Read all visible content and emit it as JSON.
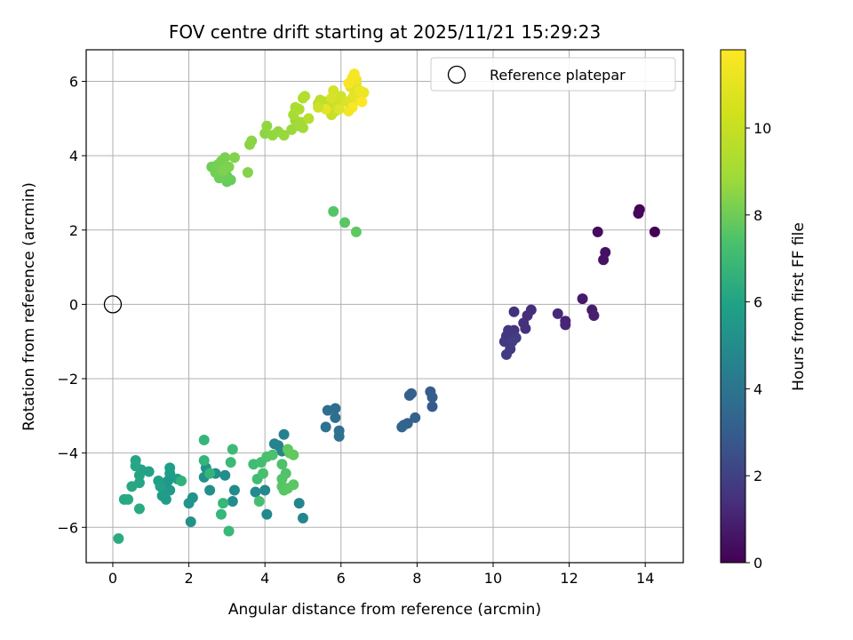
{
  "chart_data": {
    "type": "scatter",
    "title": "FOV centre drift starting at 2025/11/21 15:29:23",
    "xlabel": "Angular distance from reference (arcmin)",
    "ylabel": "Rotation from reference (arcmin)",
    "xlim": [
      -0.7,
      15.0
    ],
    "ylim": [
      -6.95,
      6.85
    ],
    "xticks": [
      0,
      2,
      4,
      6,
      8,
      10,
      12,
      14
    ],
    "yticks": [
      -6,
      -4,
      -2,
      0,
      2,
      4,
      6
    ],
    "xtick_labels": [
      "0",
      "2",
      "4",
      "6",
      "8",
      "10",
      "12",
      "14"
    ],
    "ytick_labels": [
      "−6",
      "−4",
      "−2",
      "0",
      "2",
      "4",
      "6"
    ],
    "grid": true,
    "legend": {
      "position": "top-right",
      "entries": [
        "Reference platepar"
      ]
    },
    "reference_point": {
      "x": 0,
      "y": 0,
      "label": "Reference platepar"
    },
    "colorbar": {
      "label": "Hours from first FF file",
      "colormap": "viridis",
      "min": 0,
      "max": 11.8,
      "ticks": [
        0,
        2,
        4,
        6,
        8,
        10
      ],
      "tick_labels": [
        "0",
        "2",
        "4",
        "6",
        "8",
        "10"
      ]
    },
    "series": [
      {
        "name": "FOV centre drift",
        "points": [
          [
            14.25,
            1.95,
            0.0
          ],
          [
            13.85,
            2.55,
            0.1
          ],
          [
            13.82,
            2.45,
            0.2
          ],
          [
            12.75,
            1.95,
            0.35
          ],
          [
            12.95,
            1.4,
            0.5
          ],
          [
            12.9,
            1.2,
            0.6
          ],
          [
            12.35,
            0.15,
            0.8
          ],
          [
            12.6,
            -0.15,
            0.9
          ],
          [
            12.65,
            -0.3,
            1.0
          ],
          [
            11.9,
            -0.45,
            1.15
          ],
          [
            11.9,
            -0.55,
            1.25
          ],
          [
            11.7,
            -0.25,
            1.35
          ],
          [
            11.0,
            -0.15,
            1.5
          ],
          [
            10.9,
            -0.3,
            1.55
          ],
          [
            10.8,
            -0.5,
            1.6
          ],
          [
            10.85,
            -0.65,
            1.65
          ],
          [
            10.55,
            -0.2,
            1.7
          ],
          [
            10.55,
            -0.7,
            1.75
          ],
          [
            10.5,
            -0.8,
            1.8
          ],
          [
            10.4,
            -0.7,
            1.85
          ],
          [
            10.35,
            -0.85,
            1.9
          ],
          [
            10.3,
            -1.0,
            1.95
          ],
          [
            10.45,
            -1.2,
            2.0
          ],
          [
            10.35,
            -1.35,
            2.05
          ],
          [
            10.6,
            -0.9,
            2.1
          ],
          [
            10.5,
            -1.0,
            2.15
          ],
          [
            8.4,
            -2.75,
            3.3
          ],
          [
            8.35,
            -2.35,
            3.4
          ],
          [
            8.4,
            -2.5,
            3.5
          ],
          [
            7.85,
            -2.4,
            3.55
          ],
          [
            7.8,
            -2.45,
            3.6
          ],
          [
            7.95,
            -3.05,
            3.65
          ],
          [
            7.75,
            -3.2,
            3.7
          ],
          [
            7.65,
            -3.25,
            3.75
          ],
          [
            7.6,
            -3.3,
            3.8
          ],
          [
            5.85,
            -2.8,
            4.2
          ],
          [
            5.65,
            -2.85,
            4.25
          ],
          [
            5.85,
            -3.05,
            4.3
          ],
          [
            5.95,
            -3.4,
            4.35
          ],
          [
            5.95,
            -3.55,
            4.4
          ],
          [
            5.6,
            -3.3,
            4.45
          ],
          [
            4.5,
            -3.5,
            5.2
          ],
          [
            4.25,
            -3.75,
            5.25
          ],
          [
            4.35,
            -3.8,
            5.3
          ],
          [
            4.45,
            -3.95,
            5.35
          ],
          [
            4.9,
            -5.35,
            5.4
          ],
          [
            5.0,
            -5.75,
            5.45
          ],
          [
            4.0,
            -5.0,
            5.5
          ],
          [
            4.05,
            -5.65,
            5.55
          ],
          [
            3.75,
            -5.05,
            5.6
          ],
          [
            3.2,
            -5.0,
            5.65
          ],
          [
            3.15,
            -5.3,
            5.7
          ],
          [
            2.95,
            -4.6,
            5.75
          ],
          [
            2.7,
            -4.55,
            5.8
          ],
          [
            2.55,
            -5.0,
            5.85
          ],
          [
            2.4,
            -4.65,
            5.9
          ],
          [
            2.45,
            -4.4,
            5.95
          ],
          [
            2.05,
            -5.85,
            6.0
          ],
          [
            2.1,
            -5.2,
            6.05
          ],
          [
            2.0,
            -5.35,
            6.1
          ],
          [
            1.45,
            -4.75,
            6.2
          ],
          [
            1.35,
            -4.95,
            6.3
          ],
          [
            1.5,
            -5.0,
            6.35
          ],
          [
            1.3,
            -5.15,
            6.4
          ],
          [
            1.4,
            -5.25,
            6.45
          ],
          [
            1.5,
            -4.55,
            6.5
          ],
          [
            1.5,
            -4.4,
            6.55
          ],
          [
            1.7,
            -4.7,
            6.6
          ],
          [
            1.2,
            -4.75,
            6.65
          ],
          [
            1.25,
            -4.9,
            6.7
          ],
          [
            0.95,
            -4.5,
            6.75
          ],
          [
            0.75,
            -4.45,
            6.8
          ],
          [
            0.7,
            -4.6,
            6.85
          ],
          [
            0.6,
            -4.2,
            6.9
          ],
          [
            0.6,
            -4.35,
            6.95
          ],
          [
            0.7,
            -4.8,
            7.0
          ],
          [
            0.5,
            -4.9,
            7.05
          ],
          [
            0.3,
            -5.25,
            7.1
          ],
          [
            0.4,
            -5.25,
            7.15
          ],
          [
            0.7,
            -5.5,
            7.2
          ],
          [
            0.15,
            -6.3,
            7.3
          ],
          [
            1.8,
            -4.75,
            7.6
          ],
          [
            2.4,
            -4.2,
            7.7
          ],
          [
            2.55,
            -4.55,
            7.75
          ],
          [
            2.4,
            -3.65,
            7.8
          ],
          [
            2.85,
            -5.65,
            7.85
          ],
          [
            2.9,
            -5.35,
            7.9
          ],
          [
            3.05,
            -6.1,
            7.95
          ],
          [
            3.1,
            -4.25,
            8.0
          ],
          [
            3.15,
            -3.9,
            8.05
          ],
          [
            3.7,
            -4.3,
            8.1
          ],
          [
            3.8,
            -4.7,
            8.15
          ],
          [
            3.9,
            -4.25,
            8.2
          ],
          [
            3.85,
            -5.3,
            8.25
          ],
          [
            3.95,
            -4.55,
            8.3
          ],
          [
            4.05,
            -4.1,
            8.35
          ],
          [
            4.2,
            -4.05,
            8.4
          ],
          [
            4.45,
            -4.3,
            8.45
          ],
          [
            4.55,
            -4.55,
            8.5
          ],
          [
            4.45,
            -4.7,
            8.55
          ],
          [
            4.45,
            -4.9,
            8.6
          ],
          [
            4.5,
            -5.0,
            8.65
          ],
          [
            4.6,
            -4.95,
            8.7
          ],
          [
            4.75,
            -4.85,
            8.75
          ],
          [
            4.6,
            -3.9,
            8.8
          ],
          [
            4.75,
            -4.05,
            8.85
          ],
          [
            4.65,
            -4.0,
            8.9
          ],
          [
            5.8,
            2.5,
            8.6
          ],
          [
            6.1,
            2.2,
            8.7
          ],
          [
            6.4,
            1.95,
            8.8
          ],
          [
            3.0,
            3.3,
            9.0
          ],
          [
            3.1,
            3.35,
            9.05
          ],
          [
            3.0,
            3.45,
            9.1
          ],
          [
            2.8,
            3.4,
            9.15
          ],
          [
            2.6,
            3.7,
            9.2
          ],
          [
            2.7,
            3.55,
            9.25
          ],
          [
            2.75,
            3.75,
            9.3
          ],
          [
            2.85,
            3.85,
            9.35
          ],
          [
            2.95,
            3.95,
            9.4
          ],
          [
            3.05,
            3.7,
            9.45
          ],
          [
            2.9,
            3.6,
            9.5
          ],
          [
            3.2,
            3.95,
            9.55
          ],
          [
            3.55,
            3.55,
            9.6
          ],
          [
            3.6,
            4.3,
            9.65
          ],
          [
            3.65,
            4.4,
            9.7
          ],
          [
            4.0,
            4.6,
            9.75
          ],
          [
            4.05,
            4.8,
            9.8
          ],
          [
            4.2,
            4.55,
            9.85
          ],
          [
            4.35,
            4.65,
            9.9
          ],
          [
            4.5,
            4.55,
            9.95
          ],
          [
            4.7,
            4.7,
            10.0
          ],
          [
            4.8,
            4.95,
            10.05
          ],
          [
            4.9,
            4.8,
            10.1
          ],
          [
            5.0,
            4.75,
            10.15
          ],
          [
            4.95,
            4.9,
            10.2
          ],
          [
            4.75,
            5.1,
            10.25
          ],
          [
            4.8,
            5.3,
            10.3
          ],
          [
            4.9,
            5.25,
            10.35
          ],
          [
            5.0,
            5.55,
            10.4
          ],
          [
            5.05,
            5.6,
            10.45
          ],
          [
            5.15,
            5.0,
            10.5
          ],
          [
            5.4,
            5.4,
            10.55
          ],
          [
            5.45,
            5.5,
            10.6
          ],
          [
            5.6,
            5.45,
            10.65
          ],
          [
            5.7,
            5.3,
            10.7
          ],
          [
            5.8,
            5.45,
            10.75
          ],
          [
            5.75,
            5.1,
            10.8
          ],
          [
            5.85,
            5.2,
            10.85
          ],
          [
            5.9,
            5.35,
            10.9
          ],
          [
            5.95,
            5.55,
            10.95
          ],
          [
            6.0,
            5.6,
            11.0
          ],
          [
            5.8,
            5.75,
            11.05
          ],
          [
            5.75,
            5.55,
            11.1
          ],
          [
            6.15,
            5.45,
            11.15
          ],
          [
            6.3,
            5.55,
            11.2
          ],
          [
            6.25,
            5.85,
            11.25
          ],
          [
            6.4,
            5.95,
            11.3
          ],
          [
            6.35,
            5.65,
            11.35
          ],
          [
            6.45,
            5.5,
            11.4
          ],
          [
            6.6,
            5.7,
            11.45
          ],
          [
            6.5,
            5.75,
            11.5
          ],
          [
            6.4,
            6.05,
            11.55
          ],
          [
            6.3,
            6.1,
            11.6
          ],
          [
            6.35,
            6.2,
            11.65
          ],
          [
            6.2,
            5.95,
            11.7
          ],
          [
            6.3,
            5.3,
            11.75
          ],
          [
            6.55,
            5.45,
            11.8
          ],
          [
            6.2,
            5.2,
            11.6
          ],
          [
            5.6,
            5.25,
            11.4
          ],
          [
            5.95,
            5.25,
            11.2
          ],
          [
            5.4,
            5.3,
            10.9
          ]
        ]
      }
    ]
  }
}
